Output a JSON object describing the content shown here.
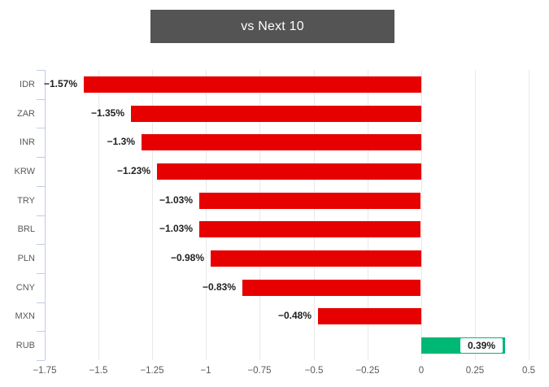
{
  "title": "vs Next 10",
  "colors": {
    "title_bg": "#545454",
    "title_text": "#ffffff",
    "bar_negative": "#e60000",
    "bar_positive": "#00b876",
    "axis_line": "#c3cce3",
    "gridline": "#e9e9e9",
    "category_label": "#595959",
    "tick_label": "#595959",
    "data_label": "#1f1f1f"
  },
  "chart_data": {
    "type": "bar",
    "orientation": "horizontal",
    "title": "vs Next 10",
    "categories": [
      "IDR",
      "ZAR",
      "INR",
      "KRW",
      "TRY",
      "BRL",
      "PLN",
      "CNY",
      "MXN",
      "RUB"
    ],
    "values": [
      -1.57,
      -1.35,
      -1.3,
      -1.23,
      -1.03,
      -1.03,
      -0.98,
      -0.83,
      -0.48,
      0.39
    ],
    "labels": [
      "−1.57%",
      "−1.35%",
      "−1.3%",
      "−1.23%",
      "−1.03%",
      "−1.03%",
      "−0.98%",
      "−0.83%",
      "−0.48%",
      "0.39%"
    ],
    "xlim": [
      -1.75,
      0.5
    ],
    "xticks": [
      -1.75,
      -1.5,
      -1.25,
      -1,
      -0.75,
      -0.5,
      -0.25,
      0,
      0.25,
      0.5
    ],
    "xtick_labels": [
      "−1.75",
      "−1.5",
      "−1.25",
      "−1",
      "−0.75",
      "−0.5",
      "−0.25",
      "0",
      "0.25",
      "0.5"
    ],
    "grid": true,
    "legend": "none",
    "xlabel": "",
    "ylabel": ""
  }
}
